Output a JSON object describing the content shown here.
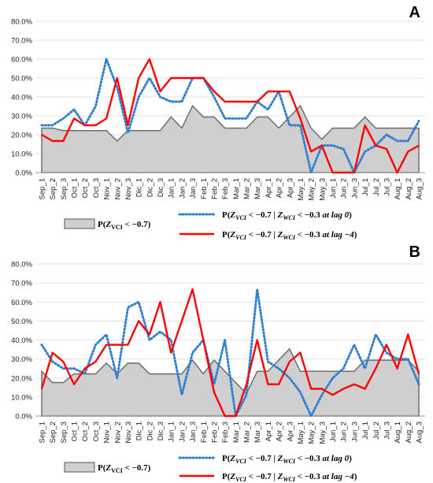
{
  "colors": {
    "area_fill": "#cfcfcf",
    "area_stroke": "#6e6e6e",
    "dotted": "#2f7fd0",
    "red": "#ff0000",
    "grid": "#d9d9d9"
  },
  "legend": {
    "area": {
      "prefix": "P(",
      "var": "Z",
      "sub": "VCI",
      "suffix": " < −0.7)"
    },
    "dotted": {
      "prefix": "P(",
      "var1": "Z",
      "sub1": "VCI",
      "mid": " < −0.7 | ",
      "var2": "Z",
      "sub2": "WCI",
      "suffix": " < −0.3 ",
      "lag": "at lag 0",
      "close": ")"
    },
    "red": {
      "prefix": "P(",
      "var1": "Z",
      "sub1": "VCI",
      "mid": " < −0.7 | ",
      "var2": "Z",
      "sub2": "WCI",
      "suffix": " < −0.3 ",
      "lag": "at lag  −4",
      "close": ")"
    }
  },
  "chart_data": [
    {
      "panel": "A",
      "type": "line",
      "ylim": [
        0,
        80
      ],
      "yticks": [
        "0.0%",
        "10.0%",
        "20.0%",
        "30.0%",
        "40.0%",
        "50.0%",
        "60.0%",
        "70.0%",
        "80.0%"
      ],
      "categories": [
        "Sep_1",
        "Sep_2",
        "Sep_3",
        "Oct_1",
        "Oct_2",
        "Oct_3",
        "Nov_1",
        "Nov_2",
        "Nov_3",
        "Dic_1",
        "Dic_2",
        "Dic_3",
        "Jan_1",
        "Jan_2",
        "Jan_3",
        "Feb_1",
        "Feb_2",
        "Feb_3",
        "Mar_1",
        "Mar_2",
        "Mar_3",
        "Apr_1",
        "Apr_2",
        "Apr_3",
        "May_1",
        "May_2",
        "May_3",
        "Jun_1",
        "Jun_2",
        "Jun_3",
        "Jul_1",
        "Jul_2",
        "Jul_3",
        "Aug_1",
        "Aug_2",
        "Aug_3"
      ],
      "series": [
        {
          "name": "P(Z_VCI < −0.7)",
          "style": "area",
          "values": [
            23.5,
            23.5,
            22.2,
            22.2,
            22.2,
            22.2,
            22.2,
            16.7,
            22.2,
            22.2,
            22.2,
            22.2,
            29.4,
            23.5,
            35.3,
            29.4,
            29.4,
            23.5,
            23.5,
            23.5,
            29.4,
            29.4,
            23.5,
            29.4,
            35.3,
            23.5,
            17.6,
            23.5,
            23.5,
            23.5,
            29.4,
            23.5,
            23.5,
            23.5,
            23.5,
            23.5
          ]
        },
        {
          "name": "P(Z_VCI < −0.7 | Z_WCI < −0.3 at lag 0)",
          "style": "dotted",
          "values": [
            25,
            25,
            28.6,
            33.3,
            25,
            35,
            60,
            45,
            21,
            40,
            50,
            40,
            37.5,
            37.5,
            50,
            50,
            40,
            28.6,
            28.6,
            28.6,
            37.5,
            33.3,
            42.9,
            25,
            25,
            0,
            14.3,
            14.3,
            12.5,
            0,
            11.1,
            14.3,
            20,
            16.7,
            16.7,
            27.3
          ]
        },
        {
          "name": "P(Z_VCI < −0.7 | Z_WCI < −0.3 at lag −4)",
          "style": "red",
          "values": [
            20,
            16.7,
            16.7,
            28.6,
            25,
            25,
            28.6,
            50,
            25,
            50,
            60,
            42.9,
            50,
            50,
            50,
            50,
            42.9,
            37.5,
            37.5,
            37.5,
            37.5,
            42.9,
            42.9,
            42.9,
            28.6,
            11.1,
            14.3,
            0,
            0,
            0,
            25,
            14.3,
            12.5,
            0,
            11.1,
            14.3
          ]
        }
      ]
    },
    {
      "panel": "B",
      "type": "line",
      "ylim": [
        0,
        80
      ],
      "yticks": [
        "0.0%",
        "10.0%",
        "20.0%",
        "30.0%",
        "40.0%",
        "50.0%",
        "60.0%",
        "70.0%",
        "80.0%"
      ],
      "categories": [
        "Sep_1",
        "Sep_2",
        "Sep_3",
        "Oct_1",
        "Oct_2",
        "Oct_3",
        "Nov_1",
        "Nov_2",
        "Nov_3",
        "Dic_1",
        "Dic_2",
        "Dic_3",
        "Jan_1",
        "Jan_2",
        "Jan_3",
        "Feb_1",
        "Feb_2",
        "Feb_3",
        "Mar_1",
        "Mar_2",
        "Mar_3",
        "Apr_1",
        "Apr_2",
        "Apr_3",
        "May_1",
        "May_2",
        "May_3",
        "Jun_1",
        "Jun_2",
        "Jun_3",
        "Jul_1",
        "Jul_2",
        "Jul_3",
        "Aug_1",
        "Aug_2",
        "Aug_3"
      ],
      "series": [
        {
          "name": "P(Z_VCI < −0.7)",
          "style": "area",
          "values": [
            23.5,
            17.6,
            17.6,
            22.2,
            22.2,
            22.2,
            27.8,
            22.2,
            27.8,
            27.8,
            22.2,
            22.2,
            22.2,
            22.2,
            29.4,
            22.2,
            29.4,
            23.5,
            17.6,
            11.8,
            23.5,
            23.5,
            29.4,
            35.3,
            23.5,
            23.5,
            23.5,
            23.5,
            23.5,
            23.5,
            29.4,
            29.4,
            29.4,
            29.4,
            29.4,
            23.5
          ]
        },
        {
          "name": "P(Z_VCI < −0.7 | Z_WCI < −0.3 at lag 0)",
          "style": "dotted",
          "values": [
            37.5,
            28.6,
            25,
            25,
            22.2,
            37.5,
            42.9,
            20,
            57.1,
            60,
            40,
            44.4,
            40,
            11.1,
            33.3,
            40,
            16.7,
            40,
            0,
            11.1,
            66.7,
            28.6,
            25,
            20,
            12.5,
            0,
            11.1,
            20,
            25,
            37.5,
            25,
            42.9,
            33.3,
            30,
            30,
            16.7
          ]
        },
        {
          "name": "P(Z_VCI < −0.7 | Z_WCI < −0.3 at lag −4)",
          "style": "red",
          "values": [
            14.3,
            33.3,
            28.6,
            16.7,
            25,
            28.6,
            37.5,
            37.5,
            37.5,
            50,
            42.9,
            60,
            33.3,
            50,
            66.7,
            40,
            12.5,
            0,
            0,
            16.7,
            40,
            16.7,
            16.7,
            28.6,
            33.3,
            14.3,
            14.3,
            11.1,
            14.3,
            16.7,
            14.3,
            25,
            37.5,
            25,
            42.9,
            22.2
          ]
        }
      ]
    }
  ]
}
